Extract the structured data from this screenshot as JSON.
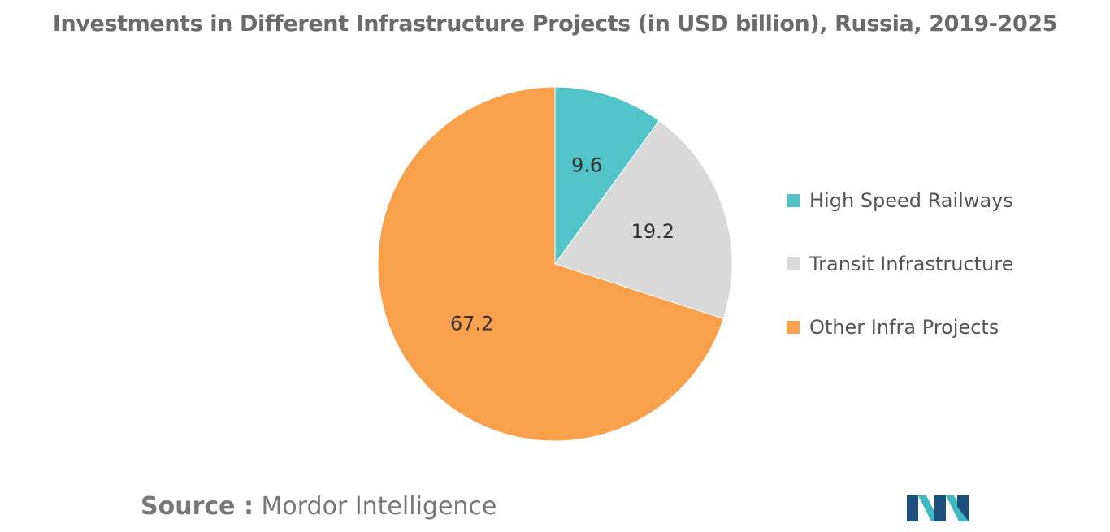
{
  "chart_data": {
    "type": "pie",
    "title": "Investments in Different Infrastructure Projects (in USD billion), Russia, 2019-2025",
    "categories": [
      "High Speed Railways",
      "Transit Infrastructure",
      "Other Infra Projects"
    ],
    "values": [
      9.6,
      19.2,
      67.2
    ],
    "value_labels": [
      "9.6",
      "19.2",
      "67.2"
    ],
    "colors": [
      "#52c4c9",
      "#d9d9d9",
      "#f9a04c"
    ],
    "legend_position": "right",
    "start_angle": "12 o'clock",
    "direction": "clockwise"
  },
  "source": {
    "prefix": "Source :",
    "text": "Mordor Intelligence"
  },
  "logo": {
    "name": "mordor-intelligence-logo",
    "colors": [
      "#1d4f7c",
      "#3fb8c2"
    ]
  }
}
